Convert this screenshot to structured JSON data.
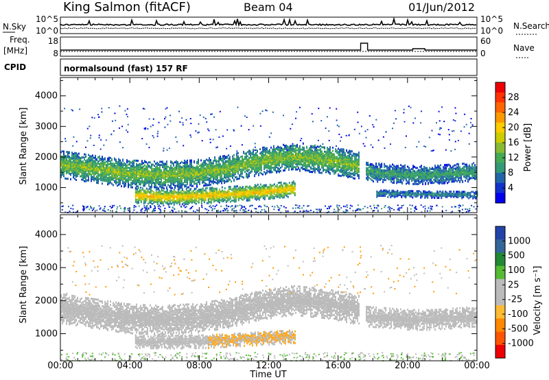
{
  "header": {
    "station": "King Salmon (fitACF)",
    "beam": "Beam 04",
    "date": "01/Jun/2012"
  },
  "strips": {
    "nsky_label": "N.Sky",
    "nsearch_label": "N.Search",
    "nsky_ticks": [
      "10^5",
      "10^0"
    ],
    "nsearch_ticks": [
      "10^5",
      "10^0"
    ],
    "freq_label": "Freq.",
    "freq_unit": "[MHz]",
    "freq_ticks": [
      "18",
      "8"
    ],
    "nave_label": "Nave",
    "nave_ticks": [
      "60",
      "0"
    ],
    "cpid_label": "CPID",
    "cpid_text": "normalsound (fast) 157 RF"
  },
  "power_scale": {
    "label": "Power [dB]",
    "ticks": [
      "28",
      "24",
      "20",
      "16",
      "12",
      "8",
      "4"
    ],
    "colors": [
      "#ee0000",
      "#ff3300",
      "#ff6600",
      "#ff9900",
      "#ffcc00",
      "#cccc00",
      "#88bb33",
      "#44aa55",
      "#339977",
      "#2266aa",
      "#1133cc",
      "#0000ee"
    ]
  },
  "velocity_scale": {
    "label": "Velocity [m s⁻¹]",
    "ticks": [
      "1000",
      "500",
      "100",
      "25",
      "-25",
      "-100",
      "-500",
      "-1000"
    ],
    "colors": [
      "#2244aa",
      "#336699",
      "#228833",
      "#55bb33",
      "#bbbbbb",
      "#bbbbbb",
      "#ffbb33",
      "#ff8800",
      "#ff5500",
      "#ee0000"
    ]
  },
  "chart_data": [
    {
      "type": "heatmap",
      "title": "Power",
      "xlabel": "",
      "ylabel": "Slant Range [km]",
      "x_ticks": [
        "00:00",
        "04:00",
        "08:00",
        "12:00",
        "16:00",
        "20:00",
        "00:00"
      ],
      "y_ticks": [
        1000,
        2000,
        3000,
        4000
      ],
      "ylim": [
        180,
        4600
      ],
      "xlim_hours": [
        0,
        24
      ],
      "colorbar_range_dB": [
        0,
        30
      ],
      "bands": [
        {
          "t0": 0.0,
          "t1": 17.2,
          "r_center": [
            1800,
            1650,
            1500,
            1450,
            1500,
            1650,
            1900,
            2050,
            1950,
            1750
          ],
          "width": 450,
          "power": 14
        },
        {
          "t0": 17.6,
          "t1": 24.0,
          "r_center": [
            1550,
            1500,
            1450,
            1450,
            1500,
            1550
          ],
          "width": 300,
          "power": 10
        },
        {
          "t0": 4.3,
          "t1": 13.5,
          "r_center": [
            780,
            720,
            760,
            820,
            900,
            1000
          ],
          "width": 250,
          "power": 20
        },
        {
          "t0": 18.2,
          "t1": 24.0,
          "r_center": [
            850,
            820,
            800
          ],
          "width": 120,
          "power": 8
        }
      ]
    },
    {
      "type": "heatmap",
      "title": "Velocity",
      "xlabel": "Time UT",
      "ylabel": "Slant Range [km]",
      "x_ticks": [
        "00:00",
        "04:00",
        "08:00",
        "12:00",
        "16:00",
        "20:00",
        "00:00"
      ],
      "y_ticks": [
        1000,
        2000,
        3000,
        4000
      ],
      "ylim": [
        180,
        4600
      ],
      "xlim_hours": [
        0,
        24
      ],
      "colorbar_range_ms": [
        -1000,
        1000
      ],
      "bands": [
        {
          "t0": 0.0,
          "t1": 17.2,
          "r_center": [
            1800,
            1650,
            1500,
            1450,
            1500,
            1650,
            1900,
            2050,
            1950,
            1750
          ],
          "width": 450,
          "velocity": 0
        },
        {
          "t0": 17.6,
          "t1": 24.0,
          "r_center": [
            1550,
            1500,
            1450,
            1450,
            1500,
            1550
          ],
          "width": 300,
          "velocity": 0
        },
        {
          "t0": 4.3,
          "t1": 8.5,
          "r_center": [
            800,
            780,
            800
          ],
          "width": 200,
          "velocity": 0
        },
        {
          "t0": 8.5,
          "t1": 13.5,
          "r_center": [
            800,
            850,
            900,
            950
          ],
          "width": 200,
          "velocity": -100
        }
      ]
    }
  ]
}
